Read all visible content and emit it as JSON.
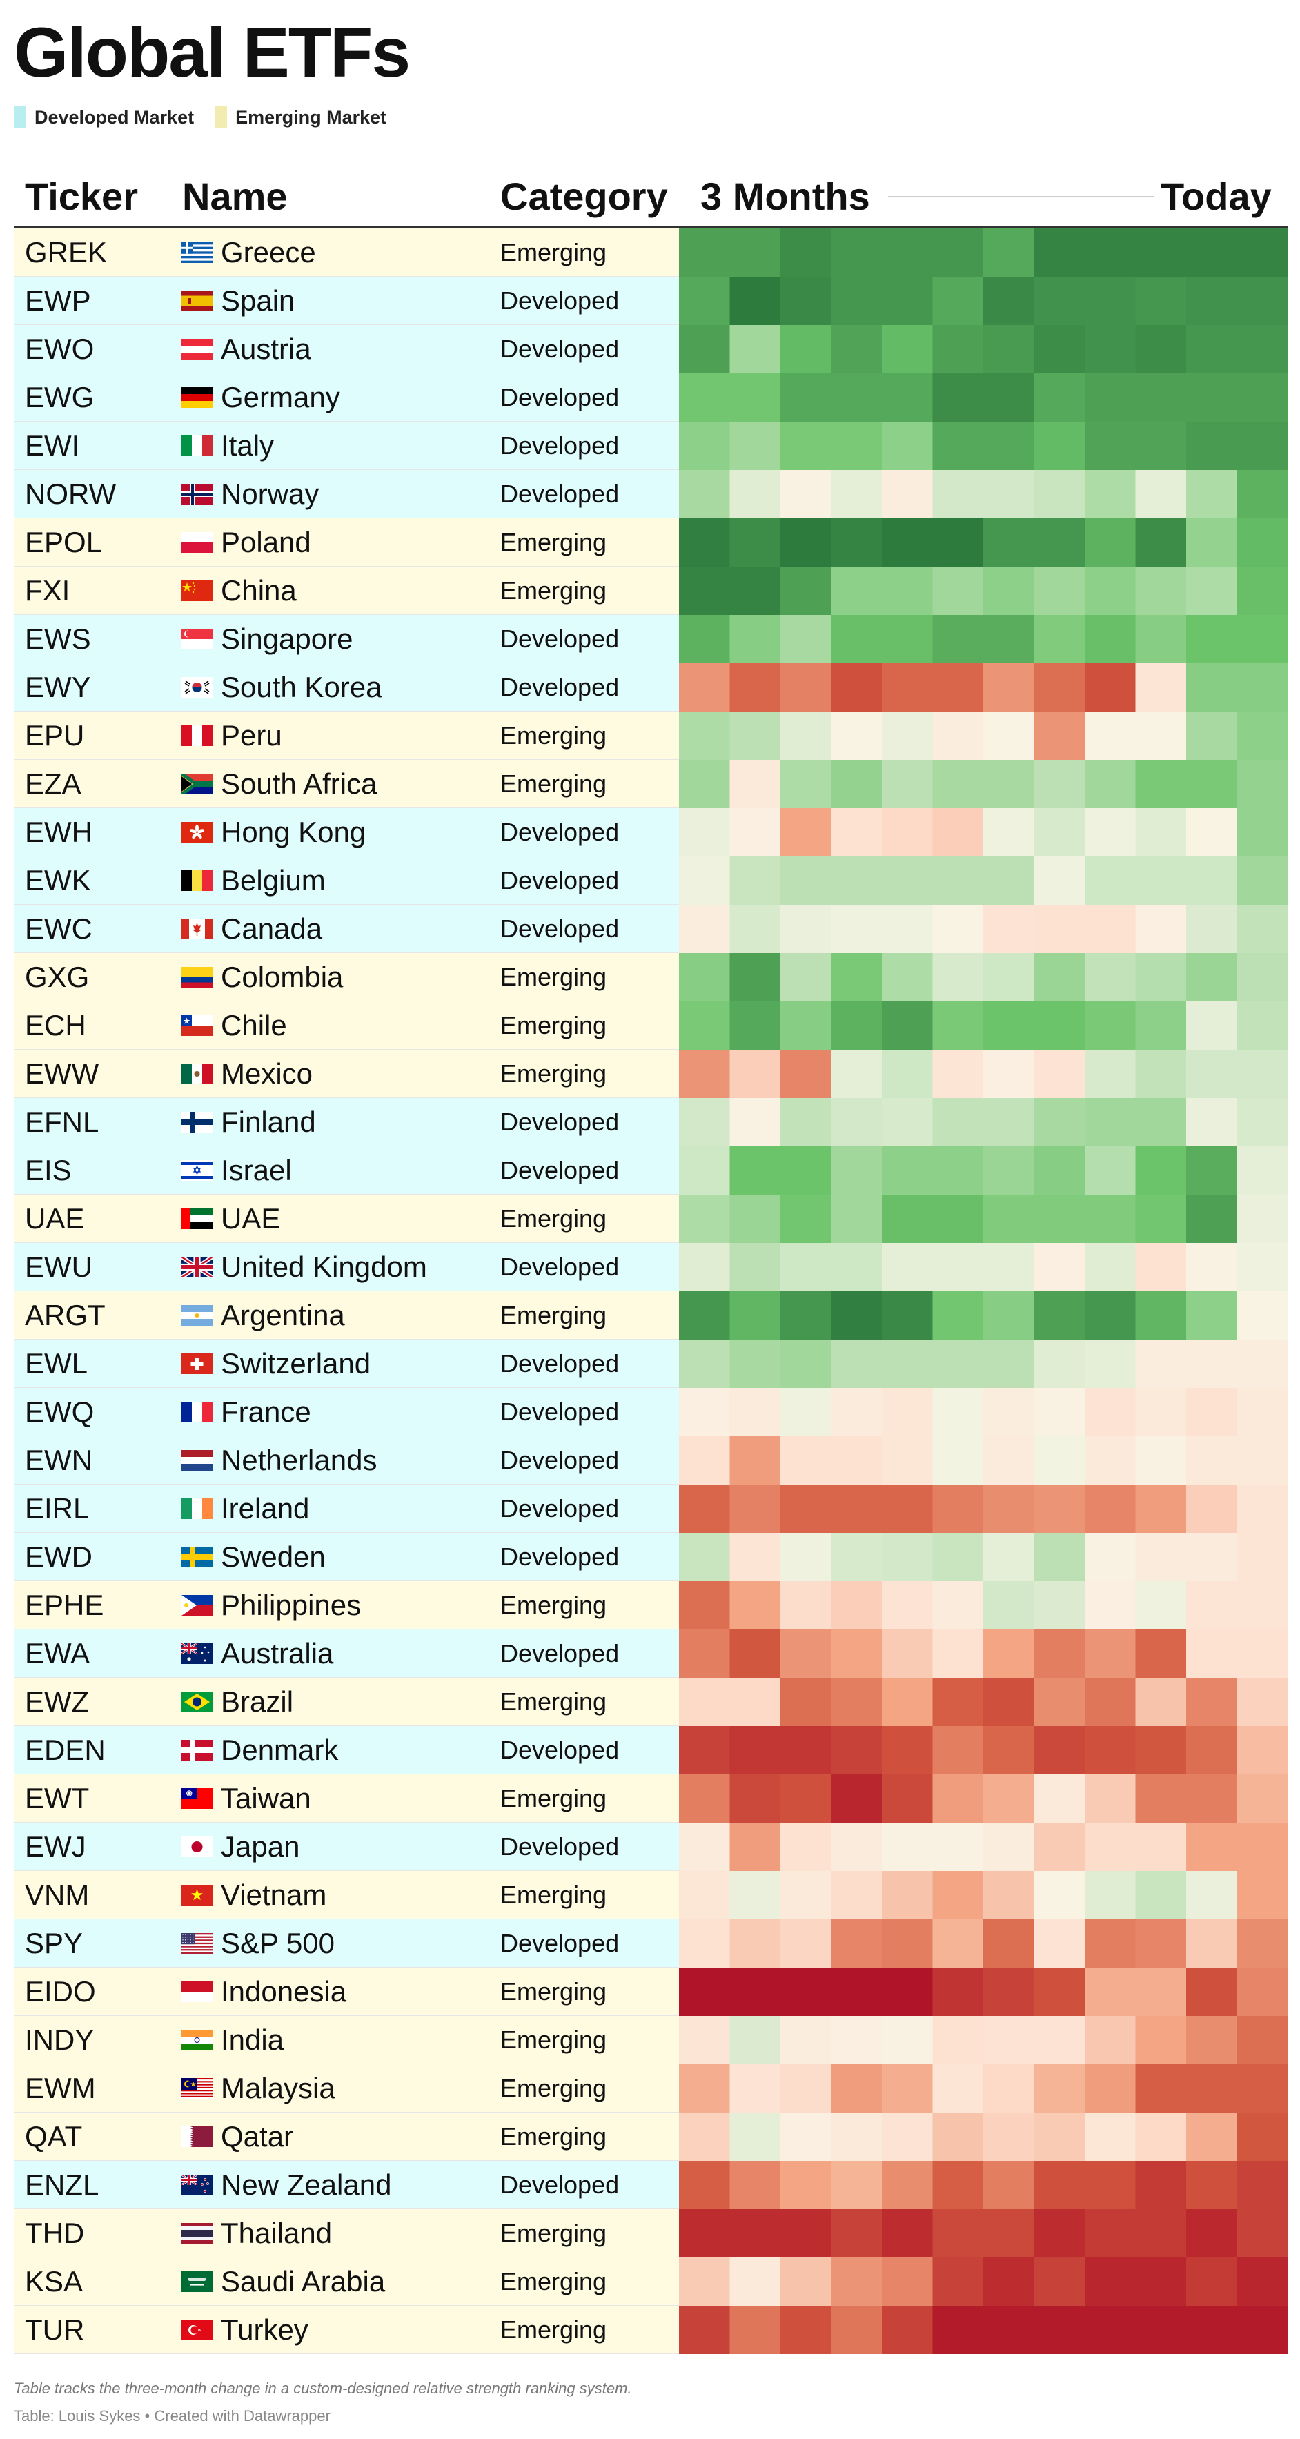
{
  "title": "Global ETFs",
  "legend": [
    {
      "label": "Developed Market",
      "color": "#e0fdfd"
    },
    {
      "label": "Emerging Market",
      "color": "#fefbe0"
    }
  ],
  "header": {
    "ticker": "Ticker",
    "name": "Name",
    "category": "Category",
    "start": "3 Months",
    "end": "Today"
  },
  "colors": {
    "developed_bg": "#e0fdfd",
    "emerging_bg": "#fefbe0"
  },
  "chart_data": {
    "type": "heatmap",
    "value_scale": "relative strength ranking (change over time; green = strong/positive, red = weak/negative)",
    "color_scale": [
      "#b01428",
      "#d45a40",
      "#f3a584",
      "#fde1d1",
      "#f8f5e6",
      "#c9e5c0",
      "#6cc46a",
      "#2e7b3e"
    ],
    "x": [
      "3 Months",
      "",
      "",
      "",
      "",
      "",
      "",
      "",
      "",
      "",
      "",
      "Today"
    ],
    "rows": [
      {
        "ticker": "GREK",
        "name": "Greece",
        "category": "Emerging",
        "flag": "greece",
        "values": [
          3.2,
          3.2,
          3.6,
          3.4,
          3.4,
          3.4,
          3.0,
          3.8,
          3.8,
          3.8,
          3.8,
          3.8
        ]
      },
      {
        "ticker": "EWP",
        "name": "Spain",
        "category": "Developed",
        "flag": "spain",
        "values": [
          3.0,
          4.0,
          3.7,
          3.4,
          3.4,
          3.0,
          3.7,
          3.5,
          3.5,
          3.4,
          3.5,
          3.5
        ]
      },
      {
        "ticker": "EWO",
        "name": "Austria",
        "category": "Developed",
        "flag": "austria",
        "values": [
          3.2,
          1.6,
          2.6,
          3.1,
          2.6,
          3.2,
          3.3,
          3.6,
          3.5,
          3.6,
          3.4,
          3.4
        ]
      },
      {
        "ticker": "EWG",
        "name": "Germany",
        "category": "Developed",
        "flag": "germany",
        "values": [
          2.3,
          2.3,
          3.0,
          3.0,
          3.0,
          3.6,
          3.6,
          3.0,
          3.2,
          3.2,
          3.2,
          3.2
        ]
      },
      {
        "ticker": "EWI",
        "name": "Italy",
        "category": "Developed",
        "flag": "italy",
        "values": [
          1.9,
          1.6,
          2.2,
          2.2,
          1.9,
          3.0,
          3.0,
          2.6,
          3.1,
          3.1,
          3.3,
          3.3
        ]
      },
      {
        "ticker": "NORW",
        "name": "Norway",
        "category": "Developed",
        "flag": "norway",
        "values": [
          1.5,
          0.5,
          -0.2,
          0.4,
          -0.4,
          0.8,
          0.8,
          1.0,
          1.4,
          0.4,
          1.4,
          2.8
        ]
      },
      {
        "ticker": "EPOL",
        "name": "Poland",
        "category": "Emerging",
        "flag": "poland",
        "values": [
          3.9,
          3.6,
          4.0,
          3.8,
          4.0,
          4.0,
          3.4,
          3.4,
          2.8,
          3.6,
          1.8,
          2.6
        ]
      },
      {
        "ticker": "FXI",
        "name": "China",
        "category": "Emerging",
        "flag": "china",
        "values": [
          3.8,
          3.8,
          3.2,
          1.9,
          1.9,
          1.6,
          1.9,
          1.6,
          1.9,
          1.6,
          1.4,
          2.5
        ]
      },
      {
        "ticker": "EWS",
        "name": "Singapore",
        "category": "Developed",
        "flag": "singapore",
        "values": [
          2.8,
          2.0,
          1.5,
          2.5,
          2.5,
          2.9,
          2.9,
          2.1,
          2.5,
          2.0,
          2.4,
          2.4
        ]
      },
      {
        "ticker": "EWY",
        "name": "South Korea",
        "category": "Developed",
        "flag": "southkorea",
        "values": [
          -3.0,
          -4.2,
          -3.5,
          -4.8,
          -4.2,
          -4.2,
          -3.0,
          -4.0,
          -4.8,
          -0.8,
          2.0,
          2.0
        ]
      },
      {
        "ticker": "EPU",
        "name": "Peru",
        "category": "Emerging",
        "flag": "peru",
        "values": [
          1.4,
          1.2,
          0.5,
          -0.1,
          0.3,
          -0.4,
          -0.1,
          -3.0,
          -0.1,
          -0.1,
          1.5,
          1.9
        ]
      },
      {
        "ticker": "EZA",
        "name": "South Africa",
        "category": "Emerging",
        "flag": "southafrica",
        "values": [
          1.6,
          -0.6,
          1.4,
          1.8,
          1.2,
          1.5,
          1.5,
          1.2,
          1.6,
          2.2,
          2.2,
          1.8
        ]
      },
      {
        "ticker": "EWH",
        "name": "Hong Kong",
        "category": "Developed",
        "flag": "hongkong",
        "values": [
          0.3,
          -0.3,
          -2.6,
          -1.0,
          -1.2,
          -1.5,
          0.2,
          0.7,
          0.2,
          0.5,
          -0.1,
          1.8
        ]
      },
      {
        "ticker": "EWK",
        "name": "Belgium",
        "category": "Developed",
        "flag": "belgium",
        "values": [
          0.2,
          1.0,
          1.2,
          1.2,
          1.2,
          1.2,
          1.2,
          0.2,
          0.9,
          0.9,
          0.9,
          1.6
        ]
      },
      {
        "ticker": "EWC",
        "name": "Canada",
        "category": "Developed",
        "flag": "canada",
        "values": [
          -0.4,
          0.7,
          0.3,
          0.2,
          0.2,
          -0.1,
          -0.9,
          -1.0,
          -1.0,
          -0.3,
          0.6,
          1.1
        ]
      },
      {
        "ticker": "GXG",
        "name": "Colombia",
        "category": "Emerging",
        "flag": "colombia",
        "values": [
          2.0,
          3.2,
          1.2,
          2.2,
          1.4,
          0.7,
          0.9,
          1.7,
          1.1,
          1.3,
          1.7,
          1.2
        ]
      },
      {
        "ticker": "ECH",
        "name": "Chile",
        "category": "Emerging",
        "flag": "chile",
        "values": [
          2.2,
          3.0,
          2.0,
          2.8,
          3.2,
          2.2,
          2.4,
          2.4,
          2.2,
          1.9,
          0.4,
          1.1
        ]
      },
      {
        "ticker": "EWW",
        "name": "Mexico",
        "category": "Emerging",
        "flag": "mexico",
        "values": [
          -3.0,
          -1.5,
          -3.4,
          0.4,
          0.9,
          -0.8,
          -0.3,
          -0.9,
          0.7,
          1.1,
          0.8,
          0.8
        ]
      },
      {
        "ticker": "EFNL",
        "name": "Finland",
        "category": "Developed",
        "flag": "finland",
        "values": [
          0.8,
          -0.2,
          1.1,
          0.8,
          0.7,
          1.1,
          1.1,
          1.5,
          1.6,
          1.6,
          0.3,
          0.7
        ]
      },
      {
        "ticker": "EIS",
        "name": "Israel",
        "category": "Developed",
        "flag": "israel",
        "values": [
          0.9,
          2.4,
          2.4,
          1.6,
          1.9,
          1.9,
          1.7,
          2.0,
          1.3,
          2.4,
          2.9,
          0.4
        ]
      },
      {
        "ticker": "UAE",
        "name": "UAE",
        "category": "Emerging",
        "flag": "uae",
        "values": [
          1.4,
          1.7,
          2.3,
          1.6,
          2.5,
          2.5,
          2.1,
          2.1,
          2.1,
          2.3,
          3.2,
          0.3
        ]
      },
      {
        "ticker": "EWU",
        "name": "United Kingdom",
        "category": "Developed",
        "flag": "uk",
        "values": [
          0.5,
          1.2,
          0.9,
          0.9,
          0.4,
          0.4,
          0.4,
          -0.3,
          0.5,
          -1.0,
          -0.2,
          0.2
        ]
      },
      {
        "ticker": "ARGT",
        "name": "Argentina",
        "category": "Emerging",
        "flag": "argentina",
        "values": [
          3.4,
          2.7,
          3.4,
          3.9,
          3.7,
          2.3,
          2.0,
          3.2,
          3.4,
          2.7,
          1.9,
          -0.1
        ]
      },
      {
        "ticker": "EWL",
        "name": "Switzerland",
        "category": "Developed",
        "flag": "switzerland",
        "values": [
          1.2,
          1.5,
          1.6,
          1.2,
          1.2,
          1.2,
          1.2,
          0.5,
          0.4,
          -0.4,
          -0.4,
          -0.4
        ]
      },
      {
        "ticker": "EWQ",
        "name": "France",
        "category": "Developed",
        "flag": "france",
        "values": [
          -0.3,
          -0.5,
          0.2,
          -0.5,
          -0.7,
          0.1,
          -0.4,
          -0.2,
          -0.9,
          -0.6,
          -1.0,
          -0.6
        ]
      },
      {
        "ticker": "EWN",
        "name": "Netherlands",
        "category": "Developed",
        "flag": "netherlands",
        "values": [
          -1.0,
          -2.8,
          -1.0,
          -1.0,
          -0.7,
          0.1,
          -0.5,
          0.1,
          -0.6,
          -0.2,
          -0.6,
          -0.6
        ]
      },
      {
        "ticker": "EIRL",
        "name": "Ireland",
        "category": "Developed",
        "flag": "ireland",
        "values": [
          -4.2,
          -3.5,
          -4.2,
          -4.2,
          -4.2,
          -3.6,
          -3.2,
          -3.0,
          -3.4,
          -2.8,
          -1.5,
          -0.8
        ]
      },
      {
        "ticker": "EWD",
        "name": "Sweden",
        "category": "Developed",
        "flag": "sweden",
        "values": [
          1.0,
          -0.8,
          0.2,
          0.7,
          0.8,
          1.0,
          0.4,
          1.2,
          -0.2,
          -0.5,
          -0.5,
          -0.8
        ]
      },
      {
        "ticker": "EPHE",
        "name": "Philippines",
        "category": "Emerging",
        "flag": "philippines",
        "values": [
          -4.0,
          -2.6,
          -1.1,
          -1.5,
          -0.9,
          -0.5,
          0.8,
          0.6,
          -0.3,
          0.2,
          -0.8,
          -0.8
        ]
      },
      {
        "ticker": "EWA",
        "name": "Australia",
        "category": "Developed",
        "flag": "australia",
        "values": [
          -3.6,
          -4.6,
          -3.0,
          -2.6,
          -1.6,
          -1.0,
          -2.6,
          -3.6,
          -3.0,
          -4.2,
          -1.0,
          -1.0
        ]
      },
      {
        "ticker": "EWZ",
        "name": "Brazil",
        "category": "Emerging",
        "flag": "brazil",
        "values": [
          -1.2,
          -1.2,
          -4.0,
          -3.6,
          -2.6,
          -4.4,
          -4.8,
          -3.2,
          -3.8,
          -1.8,
          -3.4,
          -1.4
        ]
      },
      {
        "ticker": "EDEN",
        "name": "Denmark",
        "category": "Developed",
        "flag": "denmark",
        "values": [
          -5.2,
          -5.5,
          -5.5,
          -5.2,
          -4.8,
          -3.6,
          -4.2,
          -5.0,
          -4.8,
          -4.6,
          -4.0,
          -2.0
        ]
      },
      {
        "ticker": "EWT",
        "name": "Taiwan",
        "category": "Emerging",
        "flag": "taiwan",
        "values": [
          -3.6,
          -5.0,
          -4.8,
          -6.0,
          -5.0,
          -2.8,
          -2.4,
          -0.6,
          -1.6,
          -3.6,
          -3.6,
          -2.2
        ]
      },
      {
        "ticker": "EWJ",
        "name": "Japan",
        "category": "Developed",
        "flag": "japan",
        "values": [
          -0.5,
          -2.8,
          -1.0,
          -0.5,
          -0.2,
          -0.2,
          -0.4,
          -1.6,
          -1.1,
          -1.1,
          -2.6,
          -2.6
        ]
      },
      {
        "ticker": "VNM",
        "name": "Vietnam",
        "category": "Emerging",
        "flag": "vietnam",
        "values": [
          -0.7,
          0.3,
          -0.6,
          -1.1,
          -1.8,
          -2.6,
          -1.8,
          -0.1,
          0.5,
          1.0,
          0.3,
          -2.6
        ]
      },
      {
        "ticker": "SPY",
        "name": "S&P 500",
        "category": "Developed",
        "flag": "usa",
        "values": [
          -1.0,
          -1.6,
          -1.3,
          -3.4,
          -3.6,
          -2.2,
          -4.0,
          -0.9,
          -3.6,
          -3.4,
          -1.6,
          -3.2
        ]
      },
      {
        "ticker": "EIDO",
        "name": "Indonesia",
        "category": "Emerging",
        "flag": "indonesia",
        "values": [
          -6.5,
          -6.5,
          -6.5,
          -6.5,
          -6.5,
          -5.6,
          -5.2,
          -4.8,
          -2.4,
          -2.4,
          -4.8,
          -3.4
        ]
      },
      {
        "ticker": "INDY",
        "name": "India",
        "category": "Emerging",
        "flag": "india",
        "values": [
          -0.8,
          0.6,
          -0.4,
          -0.3,
          -0.2,
          -1.0,
          -0.9,
          -0.9,
          -1.7,
          -2.6,
          -3.2,
          -4.0
        ]
      },
      {
        "ticker": "EWM",
        "name": "Malaysia",
        "category": "Emerging",
        "flag": "malaysia",
        "values": [
          -2.4,
          -0.9,
          -1.1,
          -2.8,
          -2.4,
          -0.8,
          -1.2,
          -2.2,
          -2.8,
          -4.4,
          -4.4,
          -4.4
        ]
      },
      {
        "ticker": "QAT",
        "name": "Qatar",
        "category": "Emerging",
        "flag": "qatar",
        "values": [
          -1.4,
          0.4,
          -0.3,
          -0.6,
          -0.9,
          -1.8,
          -1.4,
          -1.6,
          -0.7,
          -1.2,
          -2.4,
          -4.6
        ]
      },
      {
        "ticker": "ENZL",
        "name": "New Zealand",
        "category": "Developed",
        "flag": "newzealand",
        "values": [
          -4.4,
          -3.4,
          -2.6,
          -2.2,
          -3.2,
          -4.4,
          -3.6,
          -4.8,
          -4.8,
          -5.4,
          -4.8,
          -5.2
        ]
      },
      {
        "ticker": "THD",
        "name": "Thailand",
        "category": "Emerging",
        "flag": "thailand",
        "values": [
          -5.8,
          -5.8,
          -5.8,
          -5.2,
          -5.8,
          -5.0,
          -5.0,
          -5.8,
          -5.4,
          -5.4,
          -5.9,
          -5.2
        ]
      },
      {
        "ticker": "KSA",
        "name": "Saudi Arabia",
        "category": "Emerging",
        "flag": "saudi",
        "values": [
          -1.6,
          -0.6,
          -1.8,
          -3.0,
          -3.4,
          -5.2,
          -5.8,
          -5.2,
          -6.0,
          -6.0,
          -5.4,
          -6.0
        ]
      },
      {
        "ticker": "TUR",
        "name": "Turkey",
        "category": "Emerging",
        "flag": "turkey",
        "values": [
          -5.2,
          -3.8,
          -4.8,
          -3.8,
          -5.2,
          -6.3,
          -6.3,
          -6.3,
          -6.3,
          -6.3,
          -6.3,
          -6.3
        ]
      }
    ]
  },
  "notes": "Table tracks the three-month change in a custom-designed relative strength ranking system.",
  "credit": "Table: Louis Sykes • Created with Datawrapper"
}
